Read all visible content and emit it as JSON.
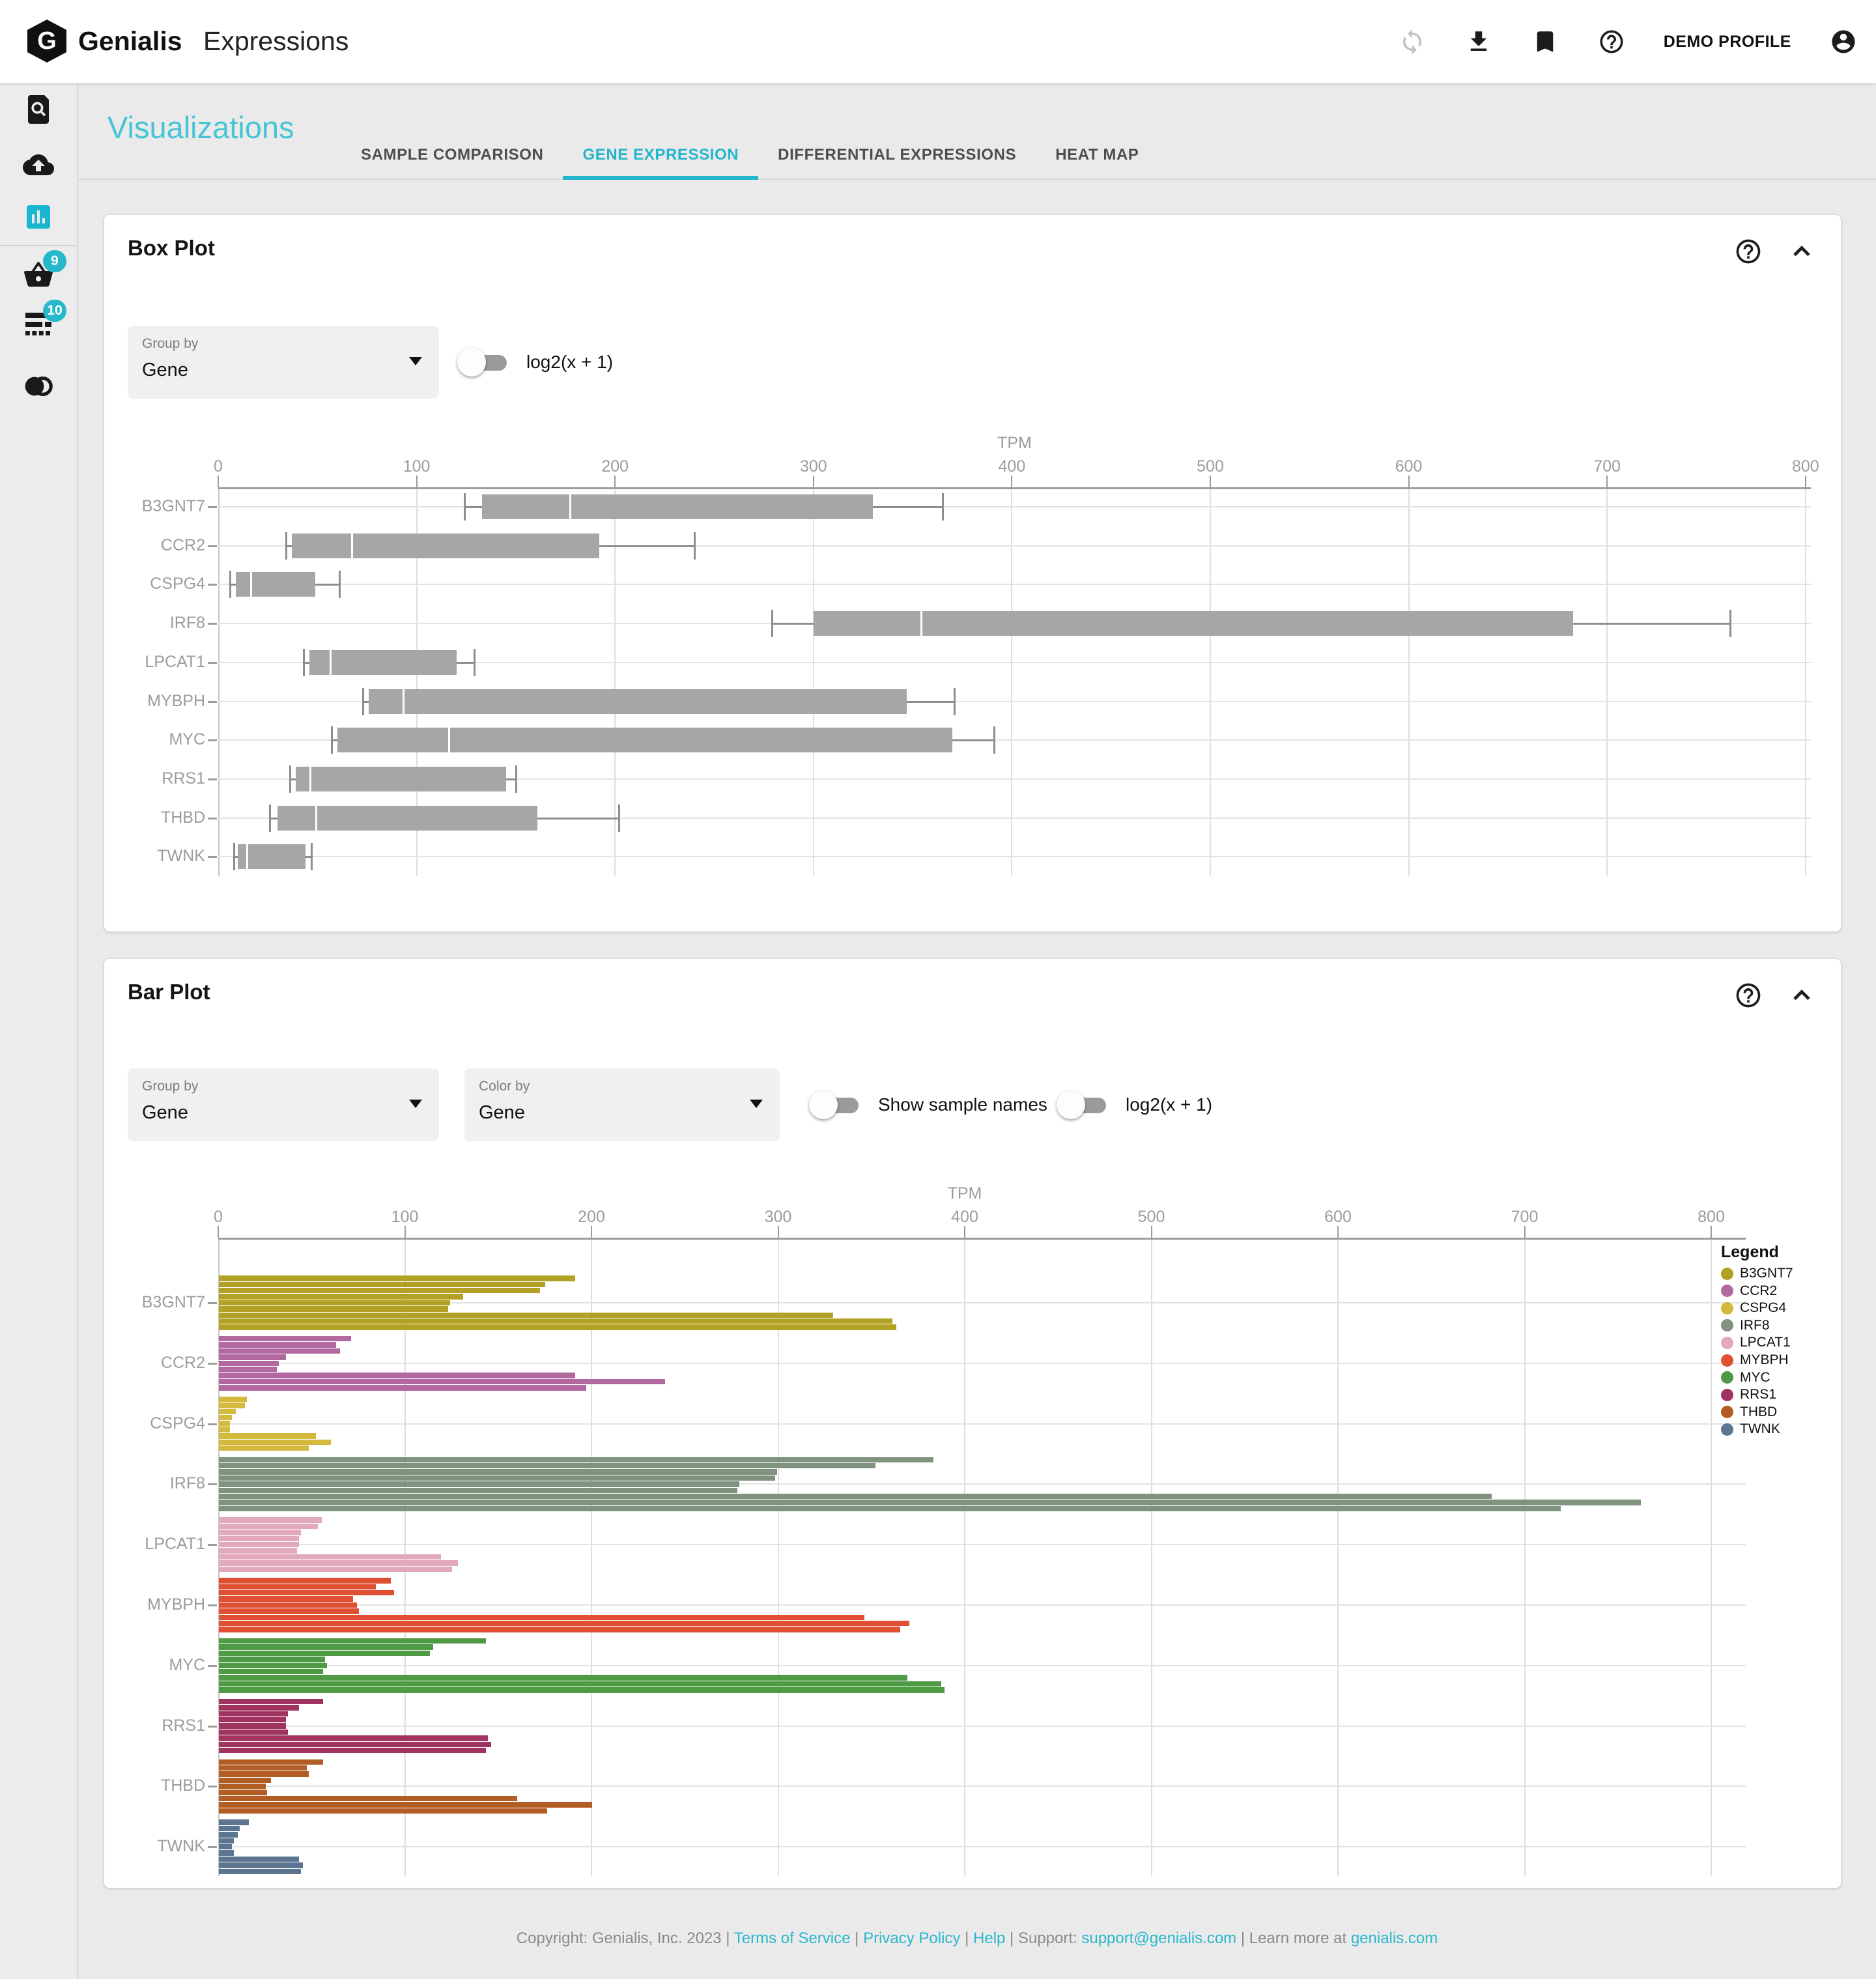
{
  "header": {
    "brand": "Genialis",
    "product": "Expressions",
    "profile_label": "DEMO PROFILE"
  },
  "sidebar": {
    "items": [
      {
        "icon": "search-data-icon",
        "badge": null,
        "active": false
      },
      {
        "icon": "upload-icon",
        "badge": null,
        "active": false
      },
      {
        "icon": "visualizations-icon",
        "badge": null,
        "active": true
      },
      {
        "icon": "basket-icon",
        "badge": "9",
        "active": false
      },
      {
        "icon": "sample-list-icon",
        "badge": "10",
        "active": false
      },
      {
        "icon": "compare-icon",
        "badge": null,
        "active": false
      }
    ]
  },
  "page": {
    "title": "Visualizations"
  },
  "tabs": [
    {
      "label": "SAMPLE COMPARISON",
      "active": false
    },
    {
      "label": "GENE EXPRESSION",
      "active": true
    },
    {
      "label": "DIFFERENTIAL EXPRESSIONS",
      "active": false
    },
    {
      "label": "HEAT MAP",
      "active": false
    }
  ],
  "colors": {
    "accent": "#23b5cb",
    "badge": "#27b9cb",
    "box_fill": "#a6a6a6",
    "whisker": "#8d8d8d"
  },
  "box_plot_panel": {
    "title": "Box Plot",
    "group_by_label": "Group by",
    "group_by_value": "Gene",
    "log_label": "log2(x + 1)"
  },
  "bar_plot_panel": {
    "title": "Bar Plot",
    "group_by_label": "Group by",
    "group_by_value": "Gene",
    "color_by_label": "Color by",
    "color_by_value": "Gene",
    "show_sample_names_label": "Show sample names",
    "log_label": "log2(x + 1)",
    "legend_title": "Legend"
  },
  "chart_data": [
    {
      "type": "box",
      "title": "Box Plot",
      "xlabel": "TPM",
      "xlim": [
        0,
        800
      ],
      "ticks": [
        0,
        100,
        200,
        300,
        400,
        500,
        600,
        700,
        800
      ],
      "grid": true,
      "categories": [
        "B3GNT7",
        "CCR2",
        "CSPG4",
        "IRF8",
        "LPCAT1",
        "MYBPH",
        "MYC",
        "RRS1",
        "THBD",
        "TWNK"
      ],
      "stats": [
        {
          "gene": "B3GNT7",
          "whisker_low": 124,
          "q1": 133,
          "median": 177,
          "q3": 330,
          "whisker_high": 365
        },
        {
          "gene": "CCR2",
          "whisker_low": 34,
          "q1": 37,
          "median": 67,
          "q3": 192,
          "whisker_high": 240
        },
        {
          "gene": "CSPG4",
          "whisker_low": 6,
          "q1": 9,
          "median": 16,
          "q3": 49,
          "whisker_high": 61
        },
        {
          "gene": "IRF8",
          "whisker_low": 279,
          "q1": 300,
          "median": 354,
          "q3": 683,
          "whisker_high": 762
        },
        {
          "gene": "LPCAT1",
          "whisker_low": 43,
          "q1": 46,
          "median": 56,
          "q3": 120,
          "whisker_high": 129
        },
        {
          "gene": "MYBPH",
          "whisker_low": 73,
          "q1": 76,
          "median": 93,
          "q3": 347,
          "whisker_high": 371
        },
        {
          "gene": "MYC",
          "whisker_low": 57,
          "q1": 60,
          "median": 116,
          "q3": 370,
          "whisker_high": 391
        },
        {
          "gene": "RRS1",
          "whisker_low": 36,
          "q1": 39,
          "median": 46,
          "q3": 145,
          "whisker_high": 150
        },
        {
          "gene": "THBD",
          "whisker_low": 26,
          "q1": 30,
          "median": 49,
          "q3": 161,
          "whisker_high": 202
        },
        {
          "gene": "TWNK",
          "whisker_low": 8,
          "q1": 10,
          "median": 14,
          "q3": 44,
          "whisker_high": 47
        }
      ]
    },
    {
      "type": "bar",
      "title": "Bar Plot",
      "xlabel": "TPM",
      "xlim": [
        0,
        800
      ],
      "ticks": [
        0,
        100,
        200,
        300,
        400,
        500,
        600,
        700,
        800
      ],
      "grid": true,
      "legend_position": "right",
      "categories": [
        "B3GNT7",
        "CCR2",
        "CSPG4",
        "IRF8",
        "LPCAT1",
        "MYBPH",
        "MYC",
        "RRS1",
        "THBD",
        "TWNK"
      ],
      "series": [
        {
          "gene": "B3GNT7",
          "color": "#b2a125",
          "values": [
            191,
            175,
            172,
            131,
            124,
            123,
            329,
            361,
            363
          ]
        },
        {
          "gene": "CCR2",
          "color": "#b1699f",
          "values": [
            71,
            63,
            65,
            36,
            32,
            31,
            191,
            239,
            197
          ]
        },
        {
          "gene": "CSPG4",
          "color": "#d3b93c",
          "values": [
            15,
            14,
            9,
            7,
            6,
            6,
            52,
            60,
            48
          ]
        },
        {
          "gene": "IRF8",
          "color": "#7f937f",
          "values": [
            383,
            352,
            299,
            298,
            279,
            278,
            682,
            762,
            719
          ]
        },
        {
          "gene": "LPCAT1",
          "color": "#e2a9bb",
          "values": [
            55,
            53,
            44,
            43,
            43,
            42,
            119,
            128,
            125
          ]
        },
        {
          "gene": "MYBPH",
          "color": "#df4f31",
          "values": [
            92,
            84,
            94,
            72,
            74,
            75,
            346,
            370,
            365
          ]
        },
        {
          "gene": "MYC",
          "color": "#4f9a44",
          "values": [
            143,
            115,
            113,
            57,
            58,
            56,
            369,
            387,
            389
          ]
        },
        {
          "gene": "RRS1",
          "color": "#a03461",
          "values": [
            56,
            43,
            37,
            36,
            36,
            37,
            144,
            146,
            143
          ]
        },
        {
          "gene": "THBD",
          "color": "#b15d24",
          "values": [
            56,
            47,
            48,
            28,
            25,
            26,
            160,
            200,
            176
          ]
        },
        {
          "gene": "TWNK",
          "color": "#5c7590",
          "values": [
            16,
            11,
            10,
            8,
            7,
            8,
            43,
            45,
            44
          ]
        }
      ]
    }
  ],
  "footer": {
    "segments": [
      {
        "text": "Copyright: Genialis, Inc. 2023",
        "link": false
      },
      {
        "text": " | ",
        "link": false
      },
      {
        "text": "Terms of Service",
        "link": true
      },
      {
        "text": " | ",
        "link": false
      },
      {
        "text": "Privacy Policy",
        "link": true
      },
      {
        "text": " | ",
        "link": false
      },
      {
        "text": "Help",
        "link": true
      },
      {
        "text": " | Support: ",
        "link": false
      },
      {
        "text": "support@genialis.com",
        "link": true
      },
      {
        "text": " | Learn more at ",
        "link": false
      },
      {
        "text": "genialis.com",
        "link": true
      }
    ]
  }
}
